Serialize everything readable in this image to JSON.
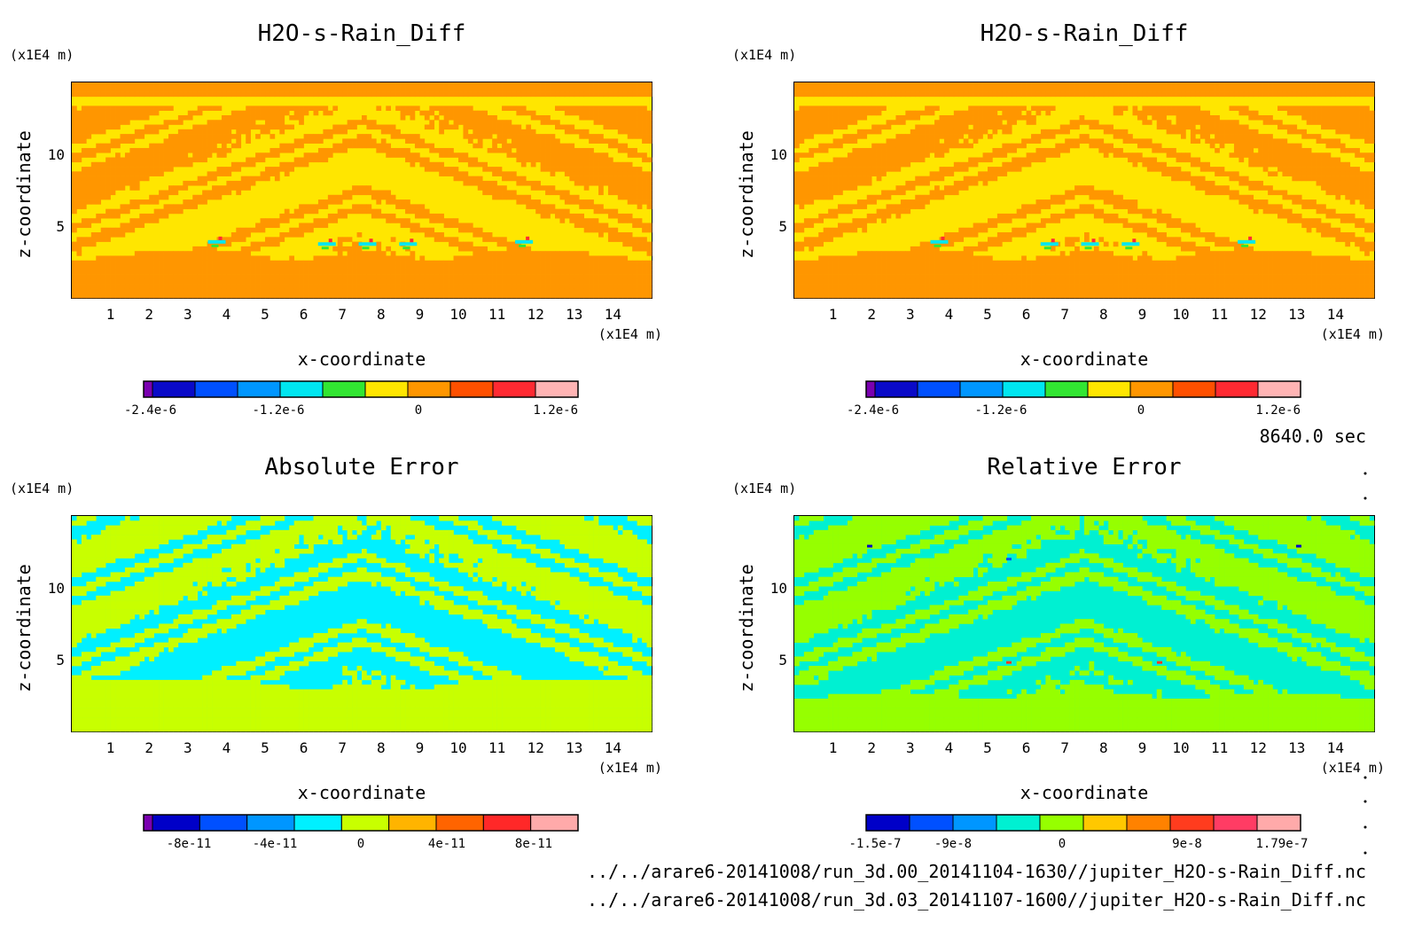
{
  "colors": {
    "rain": [
      "#7a00b0",
      "#0a0ac8",
      "#0050ff",
      "#0096ff",
      "#00e6f0",
      "#32e632",
      "#ffe600",
      "#ff9600",
      "#ff5000",
      "#ff2a32",
      "#ffb4b4"
    ],
    "abs": [
      "#7a00b0",
      "#0000c8",
      "#0050ff",
      "#0096ff",
      "#00f0ff",
      "#c8ff00",
      "#ffb400",
      "#ff6400",
      "#ff2828",
      "#ffaaaa"
    ],
    "rel": [
      "#0000c8",
      "#0050ff",
      "#0096ff",
      "#00f0d2",
      "#96ff00",
      "#ffc800",
      "#ff8200",
      "#ff3c1e",
      "#ff3c64",
      "#ffaaaa"
    ]
  },
  "chart_data": [
    {
      "type": "heatmap",
      "title": "H2O-s-Rain_Diff",
      "xlabel": "x-coordinate",
      "ylabel": "z-coordinate",
      "x_unit": "(x1E4 m)",
      "y_unit": "(x1E4 m)",
      "xlim": [
        0,
        15
      ],
      "ylim": [
        0,
        15
      ],
      "xticks": [
        "1",
        "2",
        "3",
        "4",
        "5",
        "6",
        "7",
        "8",
        "9",
        "10",
        "11",
        "12",
        "13",
        "14"
      ],
      "yticks": [
        "5",
        "10"
      ],
      "colorbar_labels": [
        "-2.4e-6",
        "-1.2e-6",
        "0",
        "1.2e-6"
      ],
      "dominant_levels": [
        "yellow",
        "orange"
      ]
    },
    {
      "type": "heatmap",
      "title": "H2O-s-Rain_Diff",
      "xlabel": "x-coordinate",
      "ylabel": "z-coordinate",
      "x_unit": "(x1E4 m)",
      "y_unit": "(x1E4 m)",
      "xlim": [
        0,
        15
      ],
      "ylim": [
        0,
        15
      ],
      "xticks": [
        "1",
        "2",
        "3",
        "4",
        "5",
        "6",
        "7",
        "8",
        "9",
        "10",
        "11",
        "12",
        "13",
        "14"
      ],
      "yticks": [
        "5",
        "10"
      ],
      "colorbar_labels": [
        "-2.4e-6",
        "-1.2e-6",
        "0",
        "1.2e-6"
      ],
      "dominant_levels": [
        "yellow",
        "orange"
      ]
    },
    {
      "type": "heatmap",
      "title": "Absolute Error",
      "xlabel": "x-coordinate",
      "ylabel": "z-coordinate",
      "x_unit": "(x1E4 m)",
      "y_unit": "(x1E4 m)",
      "xlim": [
        0,
        15
      ],
      "ylim": [
        0,
        15
      ],
      "xticks": [
        "1",
        "2",
        "3",
        "4",
        "5",
        "6",
        "7",
        "8",
        "9",
        "10",
        "11",
        "12",
        "13",
        "14"
      ],
      "yticks": [
        "5",
        "10"
      ],
      "colorbar_labels": [
        "-8e-11",
        "-4e-11",
        "0",
        "4e-11",
        "8e-11"
      ],
      "dominant_levels": [
        "cyan",
        "yellow-green"
      ]
    },
    {
      "type": "heatmap",
      "title": "Relative Error",
      "xlabel": "x-coordinate",
      "ylabel": "z-coordinate",
      "x_unit": "(x1E4 m)",
      "y_unit": "(x1E4 m)",
      "xlim": [
        0,
        15
      ],
      "ylim": [
        0,
        15
      ],
      "xticks": [
        "1",
        "2",
        "3",
        "4",
        "5",
        "6",
        "7",
        "8",
        "9",
        "10",
        "11",
        "12",
        "13",
        "14"
      ],
      "yticks": [
        "5",
        "10"
      ],
      "colorbar_labels": [
        "-1.5e-7",
        "-9e-8",
        "0",
        "9e-8",
        "1.79e-7"
      ],
      "dominant_levels": [
        "teal",
        "green"
      ]
    }
  ],
  "time_label": "8640.0 sec",
  "file_paths": [
    "../../arare6-20141008/run_3d.00_20141104-1630//jupiter_H2O-s-Rain_Diff.nc",
    "../../arare6-20141008/run_3d.03_20141107-1600//jupiter_H2O-s-Rain_Diff.nc"
  ]
}
